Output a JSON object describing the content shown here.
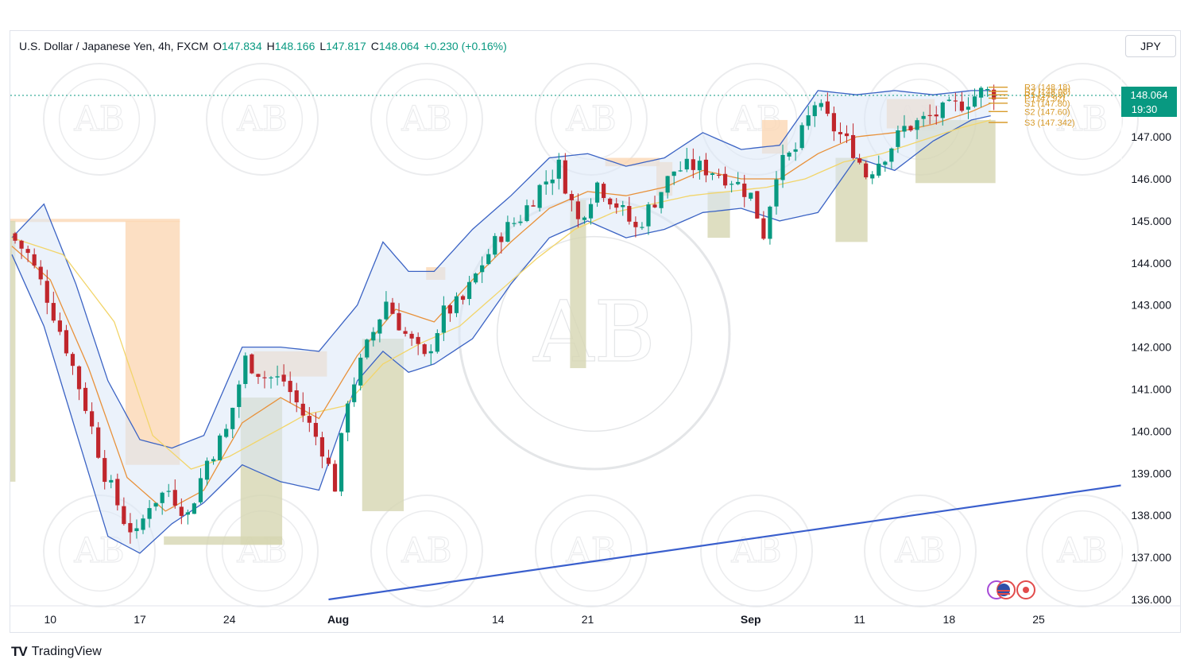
{
  "legend": {
    "symbol": "U.S. Dollar / Japanese Yen, 4h, FXCM",
    "o_label": "O",
    "o_value": "147.834",
    "h_label": "H",
    "h_value": "148.166",
    "l_label": "L",
    "l_value": "147.817",
    "c_label": "C",
    "c_value": "148.064",
    "change": "+0.230 (+0.16%)"
  },
  "currency_button": "JPY",
  "price_badge": {
    "price": "148.064",
    "countdown": "19:30"
  },
  "pivots": [
    "R3 (148.18)",
    "R2 (148.08)",
    "R1 (148.0)",
    "P (147.92)",
    "S1 (147.80)",
    "S2 (147.60)",
    "S3 (147.342)"
  ],
  "watermark_text": "AB",
  "footer_logo": {
    "mark": "TV",
    "name": "TradingView"
  },
  "colors": {
    "up": "#089981",
    "down": "#c0262c",
    "band": "#3b63c4",
    "sma_orange": "#e8913a",
    "sma_yellow": "#f2d56a",
    "trendline": "#3a5fcd",
    "badge": "#089981"
  },
  "chart_data": {
    "type": "candlestick",
    "title": "U.S. Dollar / Japanese Yen, 4h, FXCM",
    "y_ticks": [
      "148.064",
      "147.000",
      "146.000",
      "145.000",
      "144.000",
      "143.000",
      "142.000",
      "141.000",
      "140.000",
      "139.000",
      "138.000",
      "137.000",
      "136.000"
    ],
    "ylim": [
      136,
      148.6
    ],
    "x_ticks": [
      "10",
      "17",
      "24",
      "Aug",
      "14",
      "21",
      "Sep",
      "11",
      "18",
      "25"
    ],
    "price_path": [
      [
        0,
        144.7
      ],
      [
        3,
        144.2
      ],
      [
        6,
        143.2
      ],
      [
        9,
        142.0
      ],
      [
        12,
        140.6
      ],
      [
        15,
        139.0
      ],
      [
        18,
        137.9
      ],
      [
        20,
        137.5
      ],
      [
        22,
        138.3
      ],
      [
        25,
        138.6
      ],
      [
        28,
        138.0
      ],
      [
        31,
        139.3
      ],
      [
        34,
        140.0
      ],
      [
        37,
        141.7
      ],
      [
        40,
        141.3
      ],
      [
        43,
        141.2
      ],
      [
        46,
        140.4
      ],
      [
        49,
        139.6
      ],
      [
        51,
        138.7
      ],
      [
        53,
        140.8
      ],
      [
        56,
        142.0
      ],
      [
        59,
        143.1
      ],
      [
        62,
        142.3
      ],
      [
        65,
        141.7
      ],
      [
        68,
        142.8
      ],
      [
        71,
        143.1
      ],
      [
        74,
        144.0
      ],
      [
        77,
        144.7
      ],
      [
        80,
        145.1
      ],
      [
        83,
        145.8
      ],
      [
        86,
        146.3
      ],
      [
        89,
        145.0
      ],
      [
        92,
        145.9
      ],
      [
        95,
        145.4
      ],
      [
        98,
        144.8
      ],
      [
        101,
        145.5
      ],
      [
        104,
        146.2
      ],
      [
        107,
        146.3
      ],
      [
        110,
        146.2
      ],
      [
        113,
        146.0
      ],
      [
        116,
        145.6
      ],
      [
        118,
        144.7
      ],
      [
        120,
        146.2
      ],
      [
        123,
        146.7
      ],
      [
        126,
        147.8
      ],
      [
        129,
        147.2
      ],
      [
        132,
        146.7
      ],
      [
        134,
        146.1
      ],
      [
        137,
        146.6
      ],
      [
        140,
        147.2
      ],
      [
        143,
        147.4
      ],
      [
        146,
        147.6
      ],
      [
        149,
        147.8
      ],
      [
        152,
        148.06
      ]
    ],
    "band_upper_path": [
      [
        0,
        144.6
      ],
      [
        5,
        145.4
      ],
      [
        10,
        143.5
      ],
      [
        15,
        141.2
      ],
      [
        20,
        139.8
      ],
      [
        25,
        139.6
      ],
      [
        30,
        139.9
      ],
      [
        36,
        142.0
      ],
      [
        42,
        142.0
      ],
      [
        48,
        141.9
      ],
      [
        54,
        143.0
      ],
      [
        58,
        144.5
      ],
      [
        62,
        143.8
      ],
      [
        66,
        143.8
      ],
      [
        72,
        144.8
      ],
      [
        78,
        145.6
      ],
      [
        84,
        146.5
      ],
      [
        90,
        146.6
      ],
      [
        96,
        146.3
      ],
      [
        102,
        146.5
      ],
      [
        108,
        147.1
      ],
      [
        114,
        146.7
      ],
      [
        120,
        146.8
      ],
      [
        126,
        148.1
      ],
      [
        132,
        148.0
      ],
      [
        138,
        148.1
      ],
      [
        144,
        148.0
      ],
      [
        150,
        148.1
      ],
      [
        153,
        148.1
      ]
    ],
    "band_lower_path": [
      [
        0,
        144.2
      ],
      [
        5,
        142.5
      ],
      [
        10,
        140.0
      ],
      [
        15,
        137.5
      ],
      [
        20,
        137.1
      ],
      [
        25,
        137.8
      ],
      [
        30,
        138.3
      ],
      [
        36,
        139.2
      ],
      [
        42,
        138.8
      ],
      [
        48,
        138.6
      ],
      [
        54,
        141.2
      ],
      [
        58,
        141.9
      ],
      [
        62,
        141.4
      ],
      [
        66,
        141.6
      ],
      [
        72,
        142.2
      ],
      [
        78,
        143.5
      ],
      [
        84,
        144.6
      ],
      [
        90,
        145.0
      ],
      [
        96,
        144.6
      ],
      [
        102,
        144.8
      ],
      [
        108,
        145.2
      ],
      [
        114,
        145.3
      ],
      [
        120,
        145.0
      ],
      [
        126,
        145.2
      ],
      [
        132,
        146.5
      ],
      [
        138,
        146.2
      ],
      [
        144,
        146.9
      ],
      [
        150,
        147.4
      ],
      [
        153,
        147.5
      ]
    ],
    "sma_orange_path": [
      [
        0,
        144.4
      ],
      [
        6,
        143.6
      ],
      [
        12,
        141.5
      ],
      [
        18,
        138.9
      ],
      [
        24,
        138.1
      ],
      [
        30,
        138.6
      ],
      [
        36,
        140.2
      ],
      [
        42,
        140.8
      ],
      [
        48,
        140.3
      ],
      [
        54,
        141.8
      ],
      [
        60,
        142.9
      ],
      [
        66,
        142.6
      ],
      [
        72,
        143.6
      ],
      [
        78,
        144.5
      ],
      [
        84,
        145.3
      ],
      [
        90,
        145.7
      ],
      [
        96,
        145.6
      ],
      [
        102,
        145.8
      ],
      [
        108,
        146.2
      ],
      [
        114,
        146.0
      ],
      [
        120,
        146.0
      ],
      [
        126,
        146.6
      ],
      [
        132,
        147.0
      ],
      [
        138,
        147.1
      ],
      [
        144,
        147.3
      ],
      [
        150,
        147.6
      ],
      [
        153,
        147.8
      ]
    ],
    "sma_yellow_path": [
      [
        0,
        144.6
      ],
      [
        8,
        144.2
      ],
      [
        16,
        142.6
      ],
      [
        22,
        139.9
      ],
      [
        28,
        139.1
      ],
      [
        34,
        139.4
      ],
      [
        40,
        139.9
      ],
      [
        46,
        140.4
      ],
      [
        52,
        140.6
      ],
      [
        58,
        141.6
      ],
      [
        64,
        142.1
      ],
      [
        70,
        142.5
      ],
      [
        76,
        143.3
      ],
      [
        82,
        144.1
      ],
      [
        88,
        144.8
      ],
      [
        94,
        145.2
      ],
      [
        100,
        145.4
      ],
      [
        106,
        145.6
      ],
      [
        112,
        145.7
      ],
      [
        118,
        145.8
      ],
      [
        124,
        146.0
      ],
      [
        130,
        146.4
      ],
      [
        136,
        146.6
      ],
      [
        142,
        146.9
      ],
      [
        148,
        147.2
      ],
      [
        153,
        147.4
      ]
    ],
    "trendline": [
      [
        49.5,
        136.0
      ],
      [
        182,
        138.9
      ]
    ]
  }
}
